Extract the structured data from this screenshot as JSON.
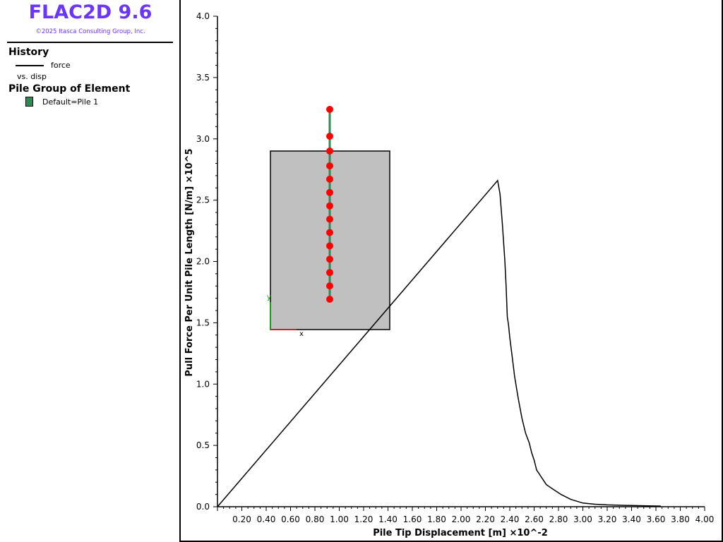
{
  "app": {
    "title": "FLAC2D 9.6",
    "copyright": "©2025 Itasca Consulting Group, Inc."
  },
  "legend": {
    "history_heading": "History",
    "series_label": "force",
    "series_subtitle": "vs. disp",
    "pile_heading": "Pile Group of Element",
    "pile_entry": "Default=Pile 1",
    "pile_color": "#2e8b57"
  },
  "chart_data": {
    "type": "line",
    "xlabel": "Pile Tip Displacement [m] ×10^-2",
    "ylabel": "Pull Force Per Unit Pile Length [N/m] ×10^5",
    "xlim": [
      0,
      4.0
    ],
    "ylim": [
      0,
      4.0
    ],
    "x_ticks": [
      "0.20",
      "0.40",
      "0.60",
      "0.80",
      "1.00",
      "1.20",
      "1.40",
      "1.60",
      "1.80",
      "2.00",
      "2.20",
      "2.40",
      "2.60",
      "2.80",
      "3.00",
      "3.20",
      "3.40",
      "3.60",
      "3.80",
      "4.00"
    ],
    "y_ticks": [
      "0.0",
      "0.5",
      "1.0",
      "1.5",
      "2.0",
      "2.5",
      "3.0",
      "3.5",
      "4.0"
    ],
    "series": [
      {
        "x": [
          0.0,
          2.3,
          2.32,
          2.34,
          2.36,
          2.37,
          2.38,
          2.39,
          2.4,
          2.42,
          2.44,
          2.47,
          2.5,
          2.53,
          2.56,
          2.58,
          2.6,
          2.62,
          2.66,
          2.7,
          2.76,
          2.82,
          2.9,
          3.0,
          3.1,
          3.2,
          3.3,
          3.4,
          3.5,
          3.6,
          3.64
        ],
        "y": [
          0.0,
          2.66,
          2.55,
          2.3,
          2.0,
          1.8,
          1.55,
          1.48,
          1.38,
          1.22,
          1.06,
          0.88,
          0.72,
          0.6,
          0.52,
          0.44,
          0.38,
          0.3,
          0.24,
          0.18,
          0.14,
          0.1,
          0.06,
          0.03,
          0.02,
          0.015,
          0.012,
          0.01,
          0.008,
          0.006,
          0.005
        ]
      }
    ],
    "grid": false
  },
  "inset": {
    "axis_x_label": "x",
    "axis_y_label": "y",
    "node_count": 14,
    "node_color": "#ff0000",
    "pile_color": "#2e8b57",
    "box_color": "#c0c0c0"
  }
}
